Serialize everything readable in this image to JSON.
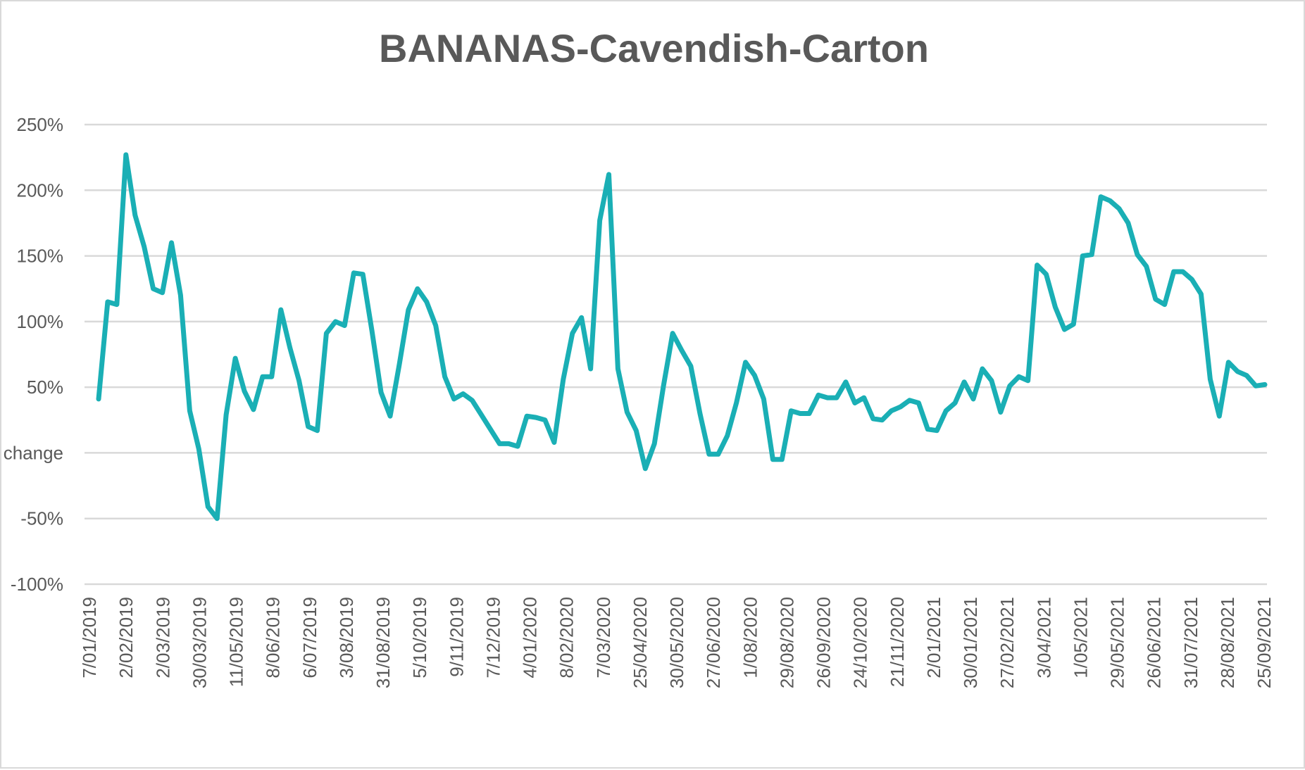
{
  "chart_data": {
    "type": "line",
    "title": "BANANAS-Cavendish-Carton",
    "ylabel": "change",
    "ylim": [
      -100,
      250
    ],
    "ytick_labels": [
      "250%",
      "200%",
      "150%",
      "100%",
      "50%",
      "change",
      "-50%",
      "-100%"
    ],
    "grid": true,
    "legend": "none",
    "line_color": "#1aafb5",
    "x_tick_labels": [
      "7/01/2019",
      "2/02/2019",
      "2/03/2019",
      "30/03/2019",
      "11/05/2019",
      "8/06/2019",
      "6/07/2019",
      "3/08/2019",
      "31/08/2019",
      "5/10/2019",
      "9/11/2019",
      "7/12/2019",
      "4/01/2020",
      "8/02/2020",
      "7/03/2020",
      "25/04/2020",
      "30/05/2020",
      "27/06/2020",
      "1/08/2020",
      "29/08/2020",
      "26/09/2020",
      "24/10/2020",
      "21/11/2020",
      "2/01/2021",
      "30/01/2021",
      "27/02/2021",
      "3/04/2021",
      "1/05/2021",
      "29/05/2021",
      "26/06/2021",
      "31/07/2021",
      "28/08/2021",
      "25/09/2021"
    ],
    "series": [
      {
        "values": [
          41,
          115,
          113,
          227,
          181,
          157,
          125,
          122,
          160,
          120,
          32,
          3,
          -41,
          -50,
          29,
          72,
          47,
          33,
          58,
          58,
          109,
          80,
          55,
          20,
          17,
          91,
          100,
          97,
          137,
          136,
          93,
          46,
          28,
          67,
          109,
          125,
          115,
          97,
          58,
          41,
          45,
          40,
          29,
          18,
          7,
          7,
          5,
          28,
          27,
          25,
          8,
          56,
          91,
          103,
          64,
          177,
          212,
          64,
          31,
          17,
          -12,
          7,
          51,
          91,
          78,
          66,
          30,
          -1,
          -1,
          13,
          38,
          69,
          59,
          41,
          -5,
          -5,
          32,
          30,
          30,
          44,
          42,
          42,
          54,
          38,
          42,
          26,
          25,
          32,
          35,
          40,
          38,
          18,
          17,
          32,
          38,
          54,
          41,
          64,
          55,
          31,
          51,
          58,
          55,
          143,
          136,
          111,
          94,
          98,
          150,
          151,
          195,
          192,
          186,
          175,
          151,
          142,
          117,
          113,
          138,
          138,
          132,
          121,
          56,
          28,
          69,
          62,
          59,
          51,
          52
        ]
      }
    ]
  }
}
